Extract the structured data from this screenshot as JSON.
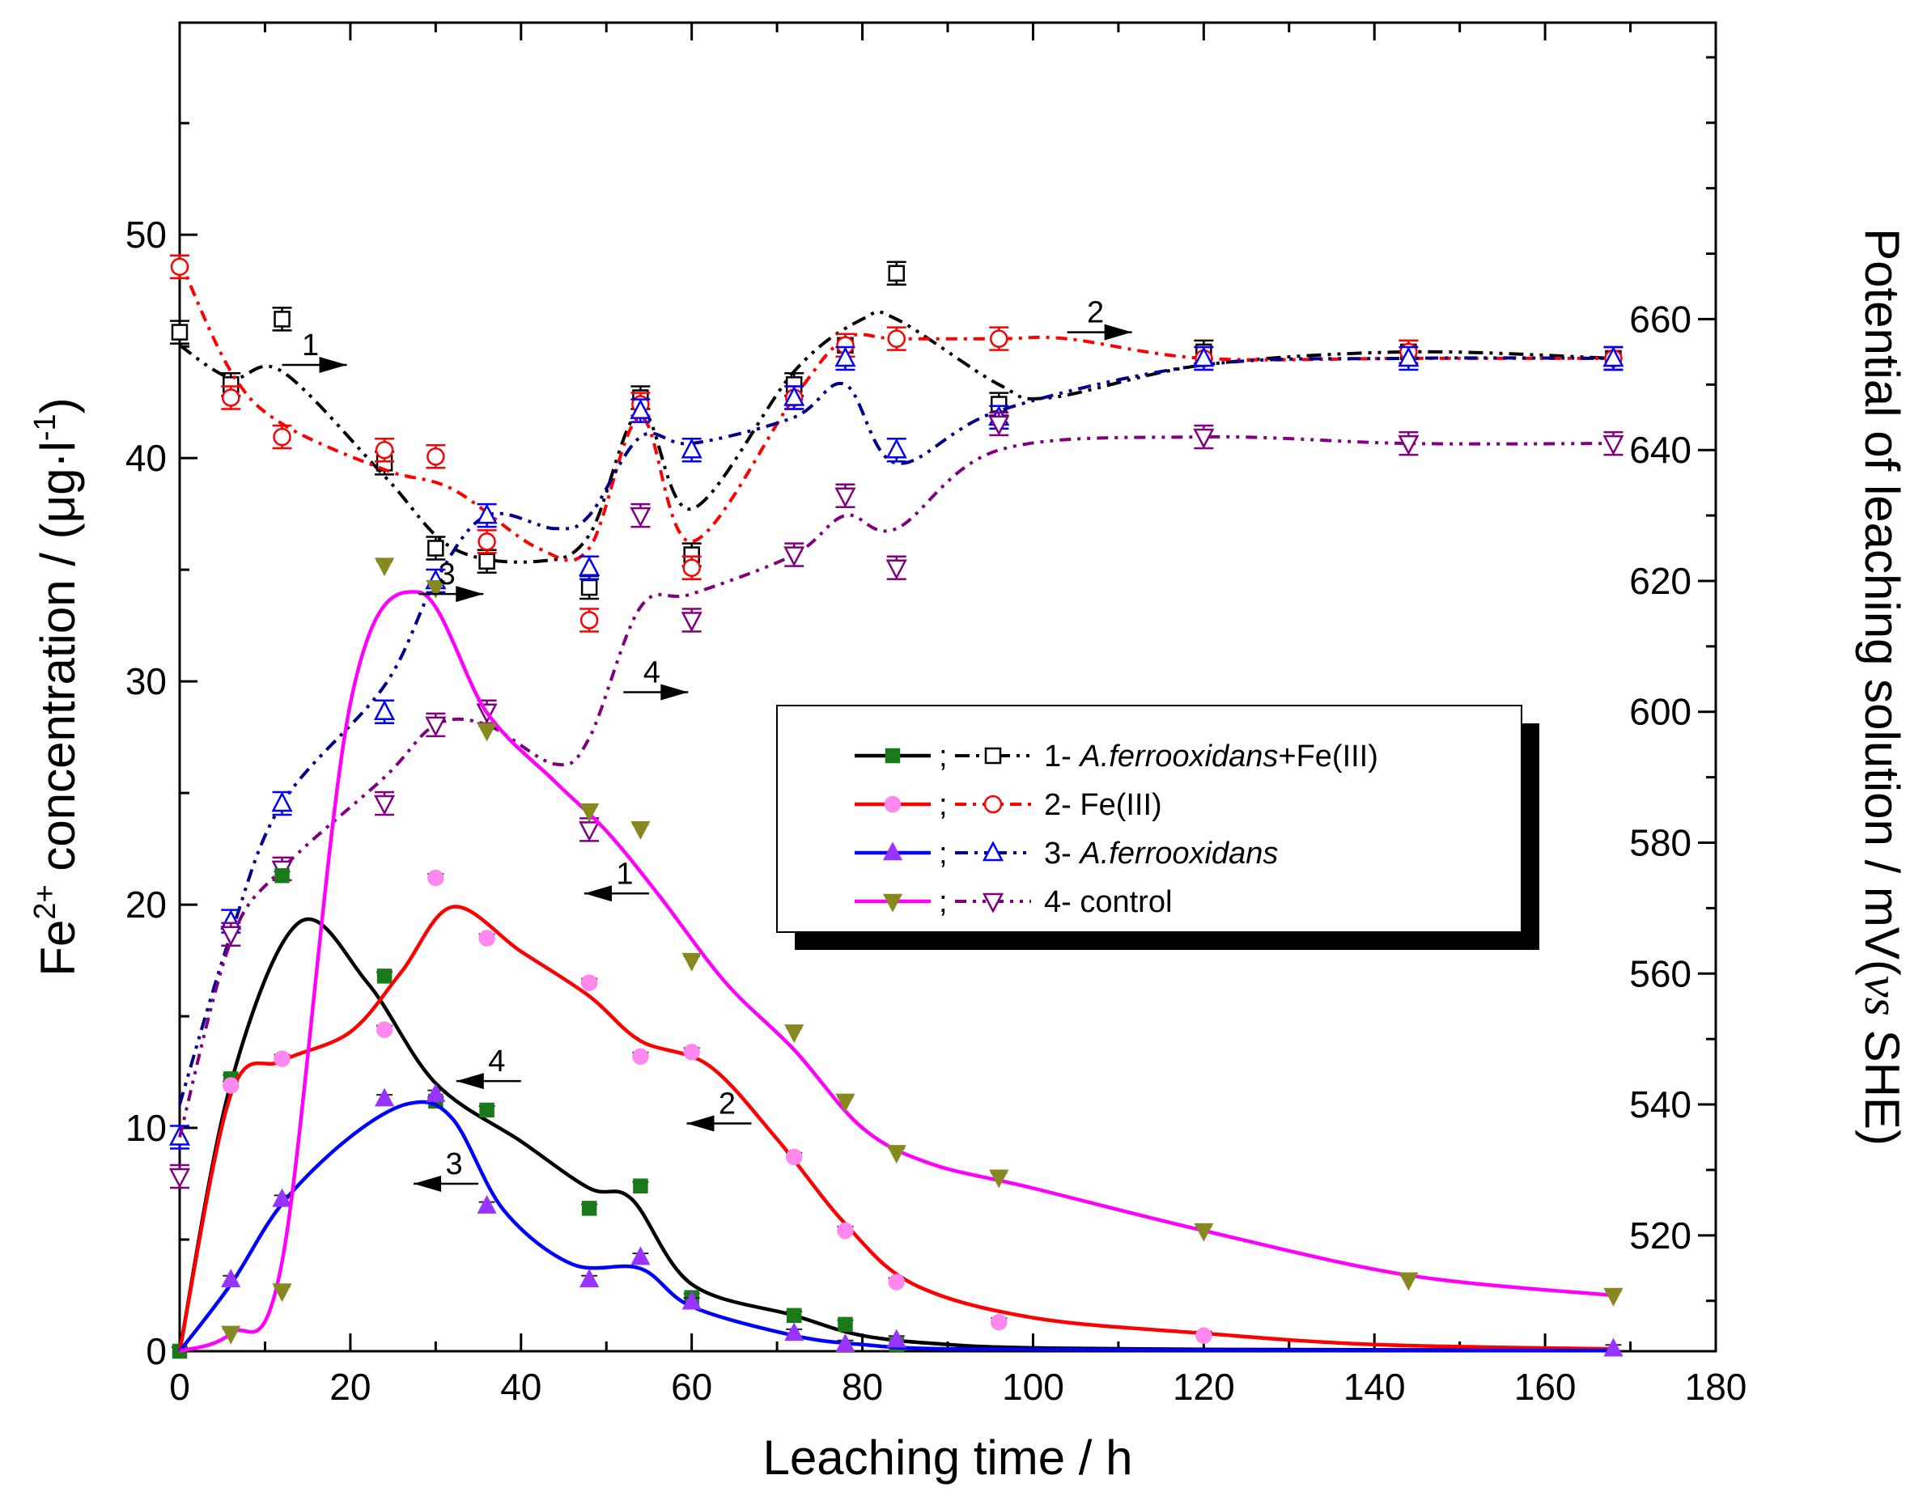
{
  "chart_data": {
    "type": "line",
    "title": "",
    "xlabel": "Leaching time / h",
    "ylabel_left": {
      "prefix": "Fe",
      "sup1": "2+",
      "mid": " concentration / (μg·l",
      "sup2": "-1",
      "suffix": ")"
    },
    "ylabel_right": {
      "prefix": "Potential of leaching solution / mV(",
      "italic": "vs",
      "suffix": " SHE)"
    },
    "xlim": [
      0,
      180
    ],
    "ylim_left": [
      0,
      59.5
    ],
    "ylim_right": [
      502.3,
      705.3
    ],
    "x_ticks": [
      0,
      20,
      40,
      60,
      80,
      100,
      120,
      140,
      160,
      180
    ],
    "x_tick_labels": [
      "0",
      "20",
      "40",
      "60",
      "80",
      "100",
      "120",
      "140",
      "160",
      "180"
    ],
    "y_left_ticks": [
      0,
      10,
      20,
      30,
      40,
      50
    ],
    "y_left_tick_labels": [
      "0",
      "10",
      "20",
      "30",
      "40",
      "50"
    ],
    "y_right_ticks": [
      520,
      540,
      560,
      580,
      600,
      620,
      640,
      660
    ],
    "y_right_tick_labels": [
      "520",
      "540",
      "560",
      "580",
      "600",
      "620",
      "640",
      "660"
    ],
    "legend": {
      "placement": "center-right",
      "separator": ";",
      "entries": [
        {
          "number": "1- ",
          "italic": "A.ferrooxidans",
          "plain": "+Fe(III)"
        },
        {
          "number": "2- ",
          "italic": "",
          "plain": "Fe(III)"
        },
        {
          "number": "3- ",
          "italic": "A.ferrooxidans",
          "plain": ""
        },
        {
          "number": "4- ",
          "italic": "",
          "plain": "control"
        }
      ]
    },
    "annotations": [
      {
        "label": "1",
        "axis": "right",
        "direction": "right",
        "x": 12,
        "y": 653
      },
      {
        "label": "2",
        "axis": "right",
        "direction": "right",
        "x": 104,
        "y": 658
      },
      {
        "label": "3",
        "axis": "right",
        "direction": "right",
        "x": 28,
        "y": 618
      },
      {
        "label": "4",
        "axis": "right",
        "direction": "right",
        "x": 52,
        "y": 603
      },
      {
        "label": "1",
        "axis": "left",
        "direction": "left",
        "x": 55,
        "y": 20.5
      },
      {
        "label": "2",
        "axis": "left",
        "direction": "left",
        "x": 67,
        "y": 10.2
      },
      {
        "label": "3",
        "axis": "left",
        "direction": "left",
        "x": 35,
        "y": 7.5
      },
      {
        "label": "4",
        "axis": "left",
        "direction": "left",
        "x": 40,
        "y": 12.1
      }
    ],
    "series": [
      {
        "name": "1- A.ferrooxidans+Fe(III)",
        "color": "#000000",
        "marker_fill": "#1a7a1a",
        "fe2_x": [
          0,
          6,
          12,
          24,
          30,
          36,
          48,
          54,
          60,
          72,
          78,
          84
        ],
        "fe2_y": [
          0,
          12.2,
          21.3,
          16.8,
          11.2,
          10.8,
          6.4,
          7.4,
          2.4,
          1.6,
          1.2,
          0.3
        ],
        "fe2_curve_x": [
          0,
          6,
          14,
          22,
          30,
          40,
          48,
          53,
          60,
          72,
          80,
          90,
          100,
          120,
          168
        ],
        "fe2_curve_y": [
          0,
          12,
          19.2,
          16.5,
          12.0,
          9.4,
          7.3,
          6.8,
          3.0,
          1.6,
          0.7,
          0.3,
          0.15,
          0.08,
          0.05
        ],
        "pot_x": [
          0,
          6,
          12,
          24,
          30,
          36,
          48,
          54,
          60,
          72,
          78,
          84,
          96,
          120,
          144,
          168
        ],
        "pot_y": [
          658,
          650,
          660,
          638,
          625,
          623,
          619,
          648,
          624,
          650,
          656,
          667,
          647,
          655,
          655,
          654
        ],
        "pot_curve_x": [
          0,
          6,
          12,
          24,
          32,
          42,
          48,
          54,
          60,
          72,
          80,
          84,
          96,
          102,
          120,
          144,
          168
        ],
        "pot_curve_y": [
          656,
          651,
          652,
          636,
          625,
          623,
          627,
          646,
          631,
          652,
          660,
          660,
          650,
          648,
          653,
          655,
          654
        ]
      },
      {
        "name": "2- Fe(III)",
        "color": "#ff0000",
        "marker_fill": "#ff88ee",
        "fe2_x": [
          6,
          12,
          24,
          30,
          36,
          48,
          54,
          60,
          72,
          78,
          84,
          96,
          120
        ],
        "fe2_y": [
          11.9,
          13.1,
          14.4,
          21.2,
          18.5,
          16.5,
          13.2,
          13.4,
          8.7,
          5.4,
          3.1,
          1.3,
          0.7
        ],
        "fe2_curve_x": [
          0,
          6,
          12,
          20,
          26,
          32,
          40,
          48,
          54,
          62,
          70,
          78,
          86,
          100,
          120,
          140,
          168
        ],
        "fe2_curve_y": [
          0,
          11.5,
          13,
          14.3,
          17.0,
          19.9,
          17.9,
          15.9,
          13.9,
          12.8,
          9.5,
          5.7,
          3.0,
          1.5,
          0.8,
          0.3,
          0.1
        ],
        "pot_x": [
          0,
          6,
          12,
          24,
          30,
          36,
          48,
          54,
          60,
          72,
          78,
          84,
          96,
          120,
          144,
          168
        ],
        "pot_y": [
          668,
          648,
          642,
          640,
          639,
          626,
          614,
          647,
          622,
          648,
          656,
          657,
          657,
          654,
          655,
          654
        ],
        "pot_curve_x": [
          0,
          6,
          12,
          24,
          32,
          42,
          48,
          54,
          60,
          72,
          78,
          84,
          96,
          104,
          120,
          144,
          168
        ],
        "pot_curve_y": [
          669,
          652,
          644,
          637,
          634,
          625,
          625,
          645,
          626,
          648,
          657,
          657,
          657,
          657,
          654,
          654,
          654
        ]
      },
      {
        "name": "3- A.ferrooxidans",
        "color": "#0000ff",
        "marker_fill": "#9933ff",
        "fe2_x": [
          6,
          12,
          24,
          30,
          36,
          48,
          54,
          60,
          72,
          78,
          84,
          168
        ],
        "fe2_y": [
          3.2,
          6.8,
          11.3,
          11.5,
          6.5,
          3.2,
          4.2,
          2.2,
          0.8,
          0.3,
          0.5,
          0.1
        ],
        "fe2_curve_x": [
          0,
          6,
          12,
          20,
          27,
          32,
          38,
          46,
          54,
          60,
          72,
          80,
          90,
          120,
          168
        ],
        "fe2_curve_y": [
          0,
          3.0,
          6.6,
          9.6,
          11.1,
          10.4,
          6.3,
          3.9,
          3.7,
          2.0,
          0.7,
          0.3,
          0.1,
          0.05,
          0.03
        ],
        "pot_x": [
          0,
          6,
          12,
          24,
          30,
          36,
          48,
          54,
          60,
          72,
          78,
          84,
          96,
          120,
          144,
          168
        ],
        "pot_y": [
          535,
          568,
          586,
          600,
          620,
          630,
          622,
          646,
          640,
          648,
          654,
          640,
          645,
          654,
          654,
          654
        ],
        "pot_curve_x": [
          0,
          6,
          12,
          24,
          30,
          36,
          44,
          48,
          54,
          60,
          72,
          78,
          84,
          96,
          120,
          144,
          168
        ],
        "pot_curve_y": [
          540,
          566,
          586,
          604,
          620,
          630,
          628,
          630,
          642,
          641,
          645,
          650,
          638,
          646,
          653,
          654,
          654
        ]
      },
      {
        "name": "4- control",
        "color": "#800080",
        "marker_fill": "#888820",
        "fe2_x": [
          6,
          12,
          24,
          30,
          36,
          48,
          54,
          60,
          72,
          78,
          84,
          96,
          120,
          144,
          168
        ],
        "fe2_y": [
          0.8,
          2.7,
          35.2,
          34.2,
          27.8,
          24.2,
          23.4,
          17.5,
          14.3,
          11.2,
          8.9,
          7.8,
          5.4,
          3.2,
          2.5
        ],
        "fe2_curve_x": [
          0,
          6,
          12,
          20,
          28,
          36,
          44,
          50,
          56,
          64,
          72,
          80,
          88,
          100,
          120,
          144,
          168
        ],
        "fe2_curve_y": [
          0,
          0.8,
          4.0,
          29.0,
          34.0,
          28.6,
          25.5,
          23.3,
          20.5,
          16.5,
          13.5,
          10.0,
          8.4,
          7.3,
          5.4,
          3.4,
          2.5
        ],
        "pot_x": [
          0,
          6,
          12,
          24,
          30,
          36,
          48,
          54,
          60,
          72,
          78,
          84,
          96,
          120,
          144,
          168
        ],
        "pot_y": [
          529,
          566,
          576,
          586,
          598,
          600,
          582,
          630,
          614,
          624,
          633,
          622,
          644,
          642,
          641,
          641
        ],
        "pot_curve_x": [
          0,
          6,
          12,
          24,
          30,
          36,
          44,
          48,
          54,
          60,
          72,
          78,
          84,
          96,
          120,
          144,
          168
        ],
        "pot_curve_y": [
          535,
          565,
          576,
          590,
          598,
          598,
          592,
          596,
          616,
          618,
          624,
          630,
          628,
          640,
          642,
          641,
          641
        ]
      }
    ]
  }
}
